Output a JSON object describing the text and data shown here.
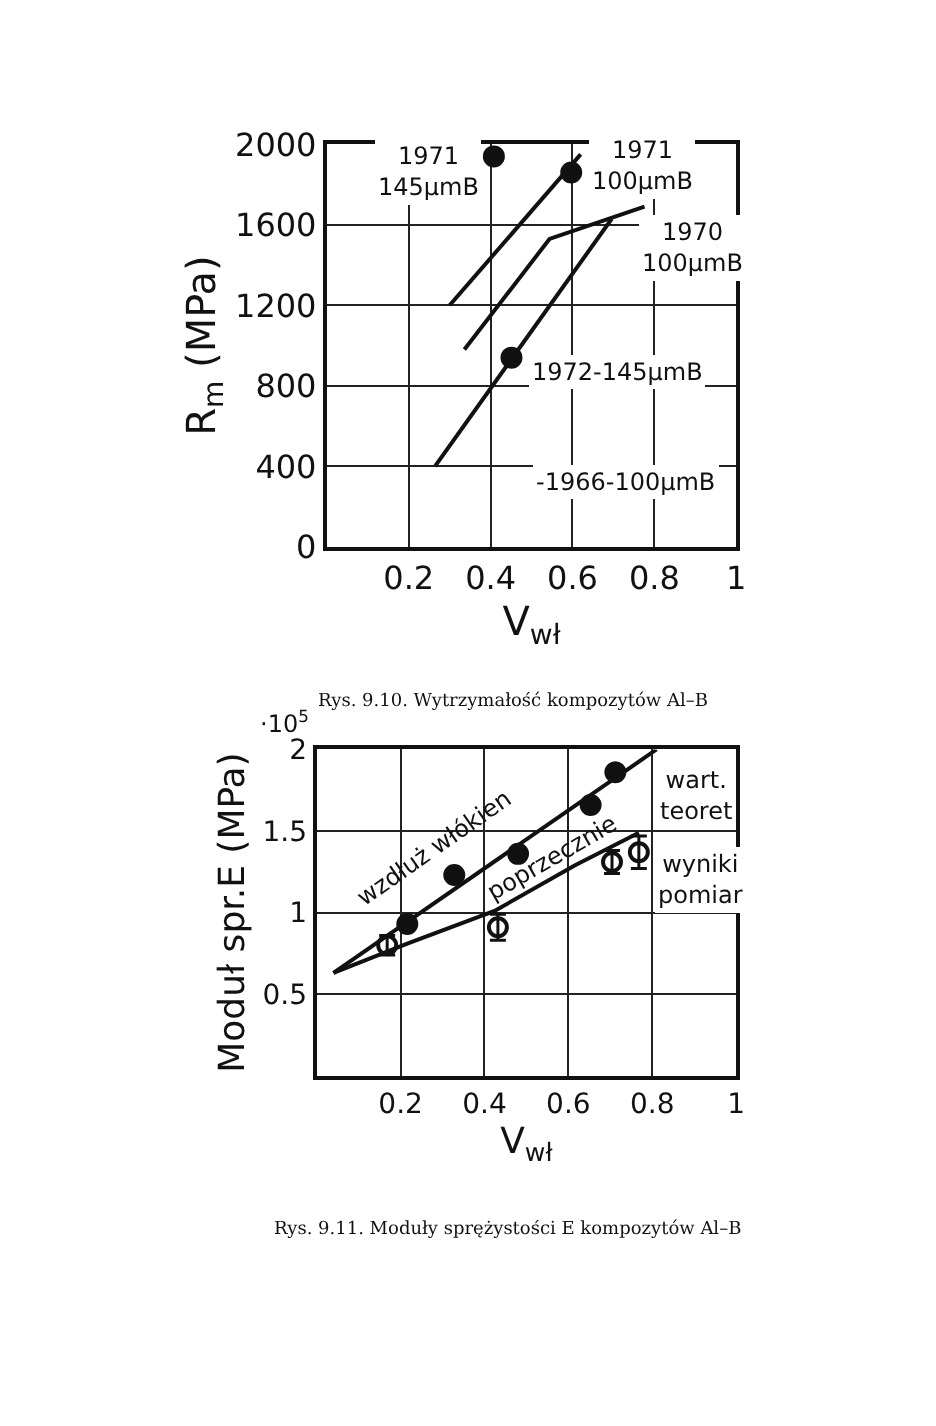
{
  "chart_data": [
    {
      "type": "line",
      "xlabel": "V$_{wł}$",
      "ylabel": "R$_{m}$ (MPa)",
      "xlim": [
        0,
        1
      ],
      "xticks": [
        0.2,
        0.4,
        0.6,
        0.8,
        1
      ],
      "ylim": [
        0,
        2000
      ],
      "yticks": [
        0,
        400,
        800,
        1200,
        1600,
        2000
      ],
      "grid": true,
      "series": [
        {
          "type": "scatter",
          "color": "#111111",
          "marker": "circle",
          "x": [
            0.408,
            0.597,
            0.451
          ],
          "values": [
            1940,
            1860,
            940
          ]
        },
        {
          "color": "#111111",
          "x": [
            0.3,
            0.62
          ],
          "values": [
            1200,
            1950
          ]
        },
        {
          "color": "#111111",
          "x": [
            0.336,
            0.544,
            0.776
          ],
          "values": [
            980,
            1530,
            1690
          ]
        },
        {
          "color": "#111111",
          "x": [
            0.264,
            0.696
          ],
          "values": [
            400,
            1630
          ]
        }
      ],
      "annotations": [
        "1971\n145μmB",
        "1971\n100μmB",
        "1970\n100μmB",
        "1972-145μmB",
        "-1966-100μmB",
        "Rys. 9.10. Wytrzymałość kompozytów Al–B"
      ]
    },
    {
      "type": "line",
      "xlabel": "V$_{wł}$",
      "ylabel": "Moduł spr.E (MPa)",
      "xlim": [
        0,
        1
      ],
      "xticks": [
        0.2,
        0.4,
        0.6,
        0.8,
        1
      ],
      "ylim": [
        0,
        2
      ],
      "yticks": [
        0.5,
        1,
        1.5,
        2
      ],
      "grid": true,
      "series": [
        {
          "color": "#111111",
          "x": [
            0.04,
            0.81
          ],
          "values": [
            0.63,
            2.0
          ]
        },
        {
          "color": "#111111",
          "x": [
            0.04,
            0.216,
            0.424,
            0.616,
            0.768
          ],
          "values": [
            0.63,
            0.81,
            1.01,
            1.29,
            1.49
          ]
        },
        {
          "type": "scatter",
          "color": "#111111",
          "marker": "circle",
          "x": [
            0.216,
            0.328,
            0.48,
            0.653,
            0.712
          ],
          "values": [
            0.93,
            1.23,
            1.36,
            1.66,
            1.86
          ]
        },
        {
          "type": "scatter",
          "color": "#111111",
          "x": [
            0.168,
            0.432,
            0.704,
            0.768
          ],
          "values": [
            0.8,
            0.91,
            1.31,
            1.37
          ],
          "errors": [
            0.06,
            0.08,
            0.07,
            0.1
          ]
        }
      ],
      "annotations": [
        "wzdłuż włókien",
        "poprzecznie",
        "wart.\nteoret",
        "wyniki\npomiar",
        "·10$^{5}$",
        "Rys. 9.11. Moduły sprężystości E kompozytów Al–B"
      ]
    }
  ]
}
